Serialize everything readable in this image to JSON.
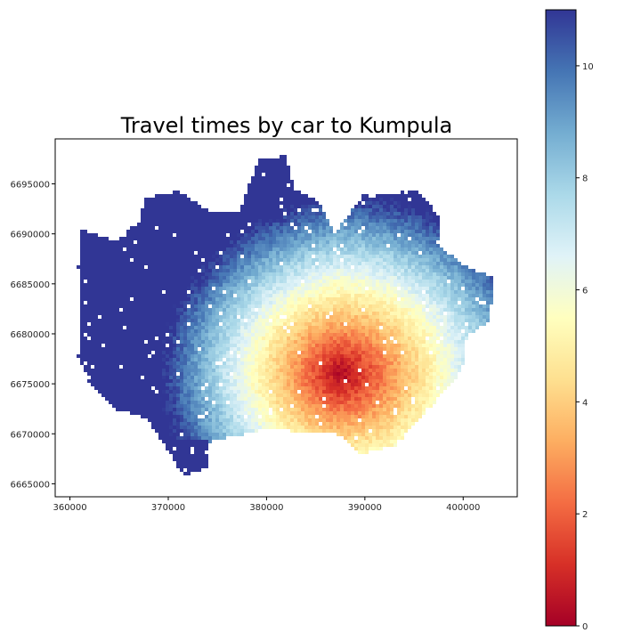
{
  "title": "Travel times by car to Kumpula",
  "map": {
    "x_ticks": [
      "360000",
      "370000",
      "380000",
      "390000",
      "400000"
    ],
    "y_ticks": [
      "6695000",
      "6690000",
      "6685000",
      "6680000",
      "6675000",
      "6670000",
      "6665000"
    ],
    "xlim": [
      358500,
      405500
    ],
    "ylim": [
      6663700,
      6699500
    ],
    "destination_center": [
      387500,
      6676000
    ],
    "value_range": [
      0,
      11
    ]
  },
  "colorbar": {
    "ticks": [
      "0",
      "2",
      "4",
      "6",
      "8",
      "10"
    ],
    "range": [
      0,
      11
    ],
    "colormap": "RdYlBu",
    "colors": [
      "#a50026",
      "#d73027",
      "#f46d43",
      "#fdae61",
      "#fee090",
      "#ffffbf",
      "#e0f3f8",
      "#abd9e9",
      "#74add1",
      "#4575b4",
      "#313695"
    ]
  }
}
